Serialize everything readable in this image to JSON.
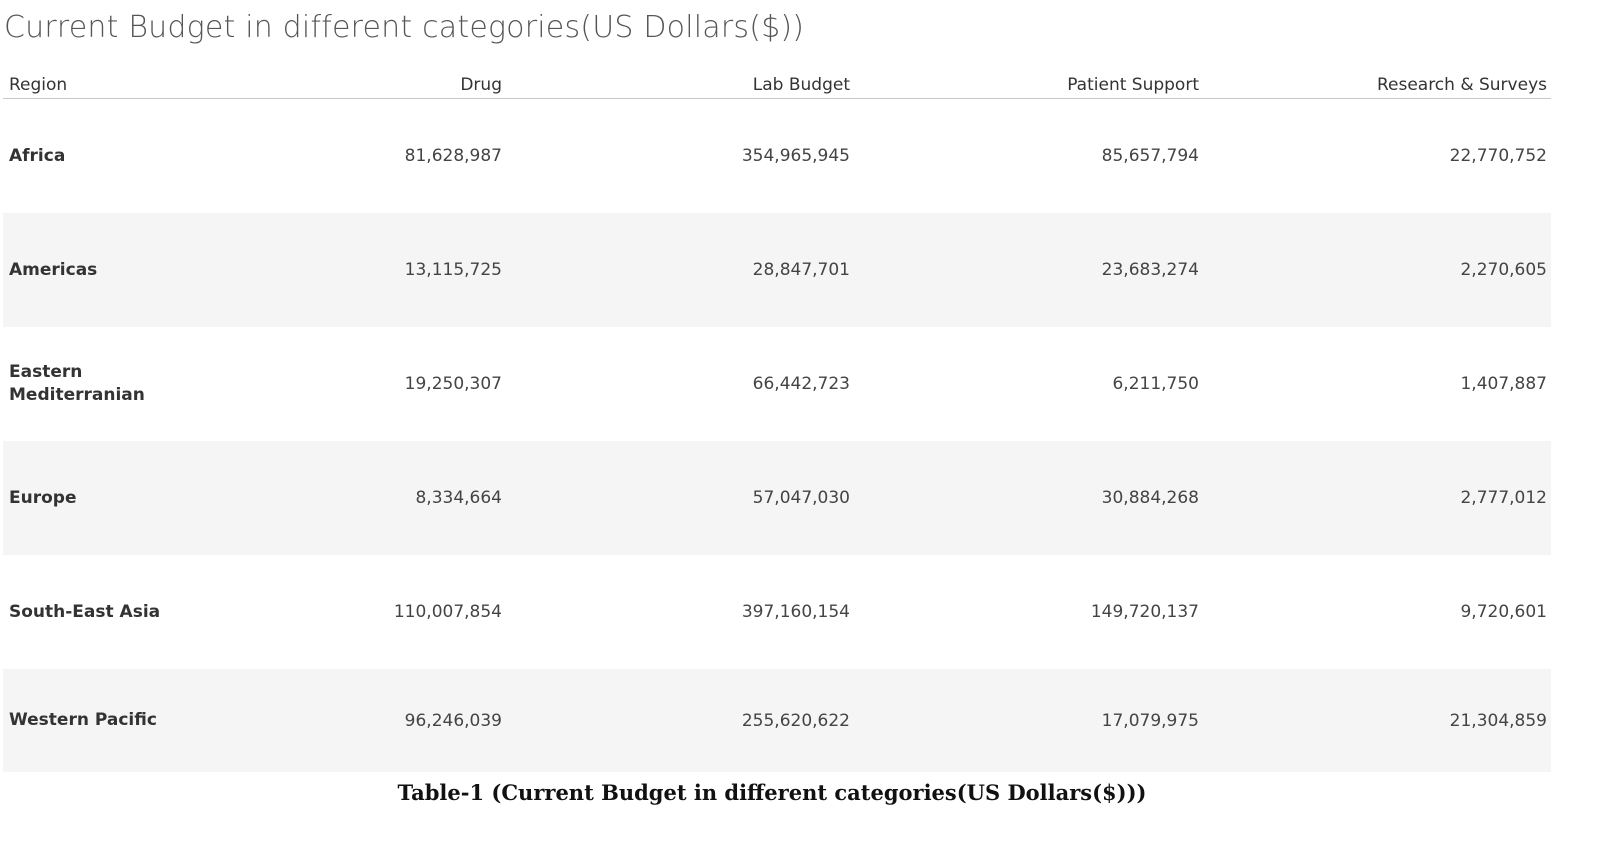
{
  "title": "Current Budget in different categories(US Dollars($))",
  "caption": "Table-1 (Current Budget in different categories(US Dollars($)))",
  "chart_data": {
    "type": "table",
    "title": "Current Budget in different categories(US Dollars($))",
    "columns": [
      "Region",
      "Drug",
      "Lab Budget",
      "Patient Support",
      "Research & Surveys"
    ],
    "rows": [
      {
        "region": "Africa",
        "values": [
          "81,628,987",
          "354,965,945",
          "85,657,794",
          "22,770,752"
        ]
      },
      {
        "region": "Americas",
        "values": [
          "13,115,725",
          "28,847,701",
          "23,683,274",
          "2,270,605"
        ]
      },
      {
        "region": "Eastern Mediterranian",
        "values": [
          "19,250,307",
          "66,442,723",
          "6,211,750",
          "1,407,887"
        ]
      },
      {
        "region": "Europe",
        "values": [
          "8,334,664",
          "57,047,030",
          "30,884,268",
          "2,777,012"
        ]
      },
      {
        "region": "South-East Asia",
        "values": [
          "110,007,854",
          "397,160,154",
          "149,720,137",
          "9,720,601"
        ]
      },
      {
        "region": "Western Pacific",
        "values": [
          "96,246,039",
          "255,620,622",
          "17,079,975",
          "21,304,859"
        ]
      }
    ]
  },
  "colors": {
    "row_band": "#f5f5f5",
    "title_text": "#555555",
    "body_text": "#333333"
  }
}
